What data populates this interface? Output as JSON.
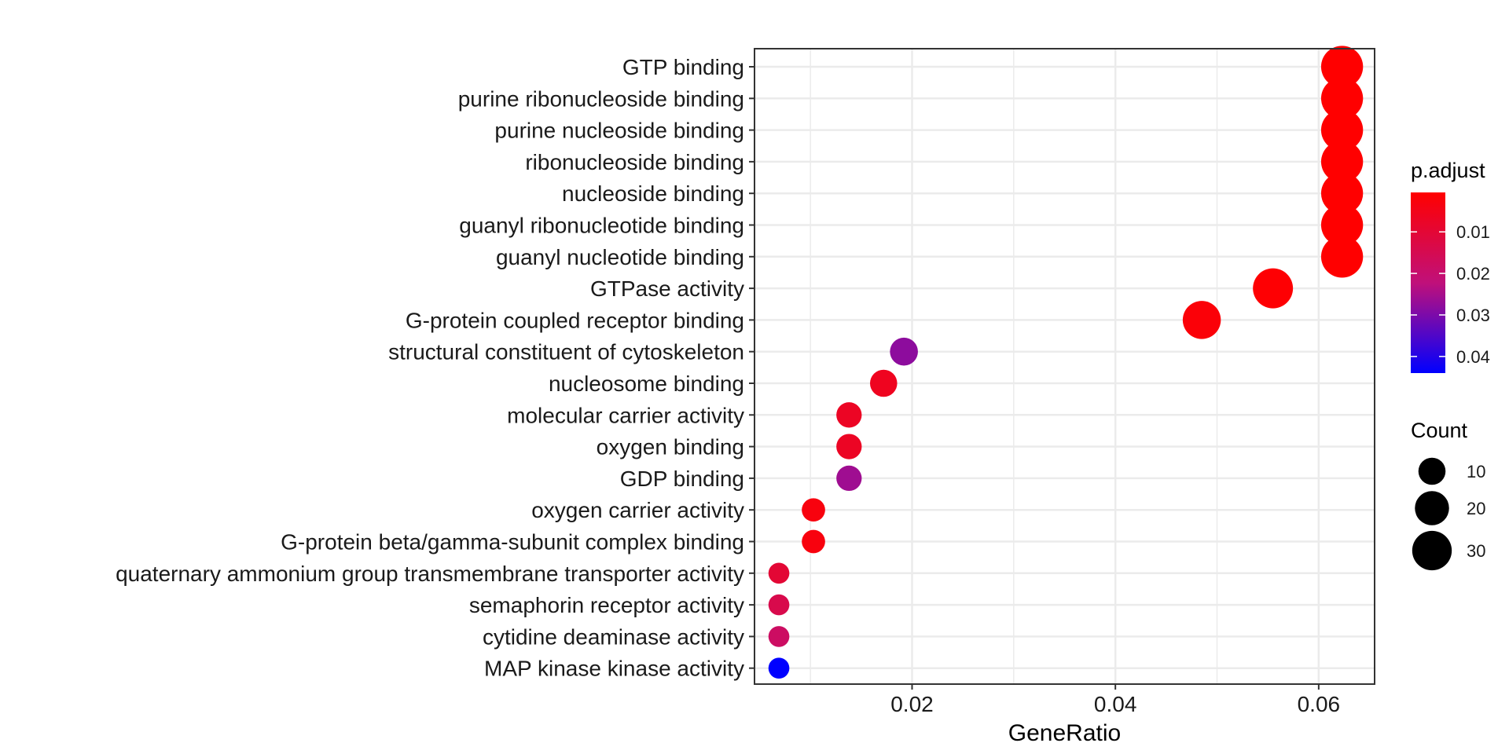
{
  "chart_data": {
    "type": "scatter",
    "title": "",
    "xlabel": "GeneRatio",
    "ylabel": "",
    "xlim": [
      0.0045,
      0.0655
    ],
    "x_ticks": [
      0.02,
      0.04,
      0.06
    ],
    "x_tick_labels": [
      "0.02",
      "0.04",
      "0.06"
    ],
    "grid": true,
    "points": [
      {
        "term": "GTP binding",
        "gene_ratio": 0.0623,
        "count": 35,
        "p_adjust": 0.0005
      },
      {
        "term": "purine ribonucleoside binding",
        "gene_ratio": 0.0623,
        "count": 35,
        "p_adjust": 0.0005
      },
      {
        "term": "purine nucleoside binding",
        "gene_ratio": 0.0623,
        "count": 35,
        "p_adjust": 0.0005
      },
      {
        "term": "ribonucleoside binding",
        "gene_ratio": 0.0623,
        "count": 35,
        "p_adjust": 0.0005
      },
      {
        "term": "nucleoside binding",
        "gene_ratio": 0.0623,
        "count": 35,
        "p_adjust": 0.0005
      },
      {
        "term": "guanyl ribonucleotide binding",
        "gene_ratio": 0.0623,
        "count": 35,
        "p_adjust": 0.0005
      },
      {
        "term": "guanyl nucleotide binding",
        "gene_ratio": 0.0623,
        "count": 35,
        "p_adjust": 0.0005
      },
      {
        "term": "GTPase activity",
        "gene_ratio": 0.0555,
        "count": 31,
        "p_adjust": 0.001
      },
      {
        "term": "G-protein coupled receptor binding",
        "gene_ratio": 0.0485,
        "count": 27,
        "p_adjust": 0.002
      },
      {
        "term": "structural constituent of cytoskeleton",
        "gene_ratio": 0.0192,
        "count": 11,
        "p_adjust": 0.028
      },
      {
        "term": "nucleosome binding",
        "gene_ratio": 0.0172,
        "count": 10,
        "p_adjust": 0.006
      },
      {
        "term": "molecular carrier activity",
        "gene_ratio": 0.0138,
        "count": 8,
        "p_adjust": 0.007
      },
      {
        "term": "oxygen binding",
        "gene_ratio": 0.0138,
        "count": 8,
        "p_adjust": 0.007
      },
      {
        "term": "GDP binding",
        "gene_ratio": 0.0138,
        "count": 8,
        "p_adjust": 0.026
      },
      {
        "term": "oxygen carrier activity",
        "gene_ratio": 0.0103,
        "count": 6,
        "p_adjust": 0.003
      },
      {
        "term": "G-protein beta/gamma-subunit complex binding",
        "gene_ratio": 0.0103,
        "count": 6,
        "p_adjust": 0.003
      },
      {
        "term": "quaternary ammonium group transmembrane transporter activity",
        "gene_ratio": 0.0069,
        "count": 4,
        "p_adjust": 0.01
      },
      {
        "term": "semaphorin receptor activity",
        "gene_ratio": 0.0069,
        "count": 4,
        "p_adjust": 0.014
      },
      {
        "term": "cytidine deaminase activity",
        "gene_ratio": 0.0069,
        "count": 4,
        "p_adjust": 0.018
      },
      {
        "term": "MAP kinase kinase activity",
        "gene_ratio": 0.0069,
        "count": 4,
        "p_adjust": 0.044
      }
    ],
    "color_legend": {
      "title": "p.adjust",
      "range": [
        0.0005,
        0.044
      ],
      "ticks": [
        0.01,
        0.02,
        0.03,
        0.04
      ],
      "tick_labels": [
        "0.01",
        "0.02",
        "0.03",
        "0.04"
      ],
      "low_color": "#ff0000",
      "high_color": "#0000ff"
    },
    "size_legend": {
      "title": "Count",
      "values": [
        10,
        20,
        30
      ],
      "labels": [
        "10",
        "20",
        "30"
      ]
    },
    "colors": {
      "grid": "#ebebeb",
      "panel_border": "#333333",
      "tick": "#333333"
    }
  }
}
